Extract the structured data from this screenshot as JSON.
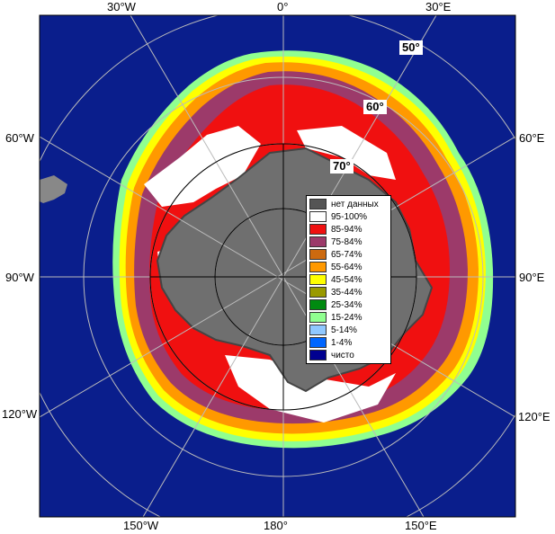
{
  "lon_labels": {
    "top_w30": "30°W",
    "top_0": "0°",
    "top_e30": "30°E",
    "left_w60": "60°W",
    "left_w90": "90°W",
    "left_w120": "120°W",
    "right_e60": "60°E",
    "right_e90": "90°E",
    "right_e120": "120°E",
    "bottom_w150": "150°W",
    "bottom_180": "180°",
    "bottom_e150": "150°E"
  },
  "lat_labels": {
    "l50": "50°",
    "l60": "60°",
    "l70": "70°"
  },
  "legend": {
    "items": [
      {
        "label": "нет данных",
        "color": "#555555"
      },
      {
        "label": "95-100%",
        "color": "#ffffff"
      },
      {
        "label": "85-94%",
        "color": "#f01010"
      },
      {
        "label": "75-84%",
        "color": "#9c3a6a"
      },
      {
        "label": "65-74%",
        "color": "#cc6a10"
      },
      {
        "label": "55-64%",
        "color": "#ff9900"
      },
      {
        "label": "45-54%",
        "color": "#ffff00"
      },
      {
        "label": "35-44%",
        "color": "#9a9a00"
      },
      {
        "label": "25-34%",
        "color": "#008a10"
      },
      {
        "label": "15-24%",
        "color": "#90ff90"
      },
      {
        "label": "5-14%",
        "color": "#90c8ff"
      },
      {
        "label": "1-4%",
        "color": "#0066ff"
      },
      {
        "label": "чисто",
        "color": "#000090"
      }
    ]
  },
  "colors": {
    "ocean": "#0a1e8c",
    "land": "#888888",
    "landdark": "#555555"
  }
}
